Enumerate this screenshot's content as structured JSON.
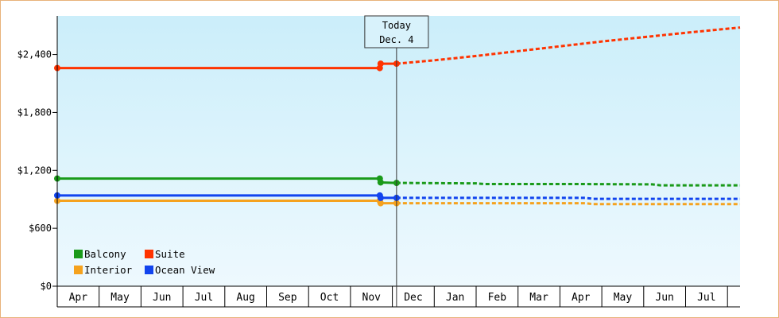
{
  "chart_data": {
    "type": "line",
    "title": "",
    "xlabel": "",
    "ylabel": "",
    "y_ticks": [
      {
        "value": 0,
        "label": "$0"
      },
      {
        "value": 600,
        "label": "$600"
      },
      {
        "value": 1200,
        "label": "$1,200"
      },
      {
        "value": 1800,
        "label": "$1,800"
      },
      {
        "value": 2400,
        "label": "$2,400"
      }
    ],
    "ylim": [
      0,
      2800
    ],
    "xlim": [
      0,
      16.3
    ],
    "months": [
      "Apr",
      "May",
      "Jun",
      "Jul",
      "Aug",
      "Sep",
      "Oct",
      "Nov",
      "Dec",
      "Jan",
      "Feb",
      "Mar",
      "Apr",
      "May",
      "Jun",
      "Jul"
    ],
    "today": {
      "x": 8.1,
      "line1": "Today",
      "line2": "Dec. 4"
    },
    "legend_placement": "bottom-left",
    "series": [
      {
        "name": "Balcony",
        "color": "#1a9a1a",
        "historical": [
          [
            0,
            1115
          ],
          [
            7.7,
            1115
          ],
          [
            7.72,
            1075
          ],
          [
            8.1,
            1070
          ]
        ],
        "forecast": [
          [
            8.1,
            1070
          ],
          [
            10.0,
            1065
          ],
          [
            10.2,
            1058
          ],
          [
            12.5,
            1058
          ],
          [
            14.2,
            1055
          ],
          [
            14.4,
            1045
          ],
          [
            16.3,
            1045
          ]
        ]
      },
      {
        "name": "Suite",
        "color": "#ff3300",
        "historical": [
          [
            0,
            2260
          ],
          [
            7.7,
            2260
          ],
          [
            7.72,
            2305
          ],
          [
            8.1,
            2305
          ]
        ],
        "forecast": [
          [
            8.1,
            2305
          ],
          [
            9.0,
            2340
          ],
          [
            10.0,
            2385
          ],
          [
            11.0,
            2435
          ],
          [
            12.0,
            2485
          ],
          [
            13.0,
            2535
          ],
          [
            14.0,
            2580
          ],
          [
            15.0,
            2625
          ],
          [
            16.3,
            2680
          ]
        ]
      },
      {
        "name": "Interior",
        "color": "#f5a21e",
        "historical": [
          [
            0,
            885
          ],
          [
            7.7,
            885
          ],
          [
            7.72,
            860
          ],
          [
            8.1,
            860
          ]
        ],
        "forecast": [
          [
            8.1,
            860
          ],
          [
            12.6,
            860
          ],
          [
            12.8,
            850
          ],
          [
            16.3,
            850
          ]
        ]
      },
      {
        "name": "Ocean View",
        "color": "#1144ee",
        "historical": [
          [
            0,
            940
          ],
          [
            7.7,
            940
          ],
          [
            7.72,
            915
          ],
          [
            8.1,
            915
          ]
        ],
        "forecast": [
          [
            8.1,
            915
          ],
          [
            12.6,
            915
          ],
          [
            12.8,
            905
          ],
          [
            16.3,
            905
          ]
        ]
      }
    ]
  }
}
